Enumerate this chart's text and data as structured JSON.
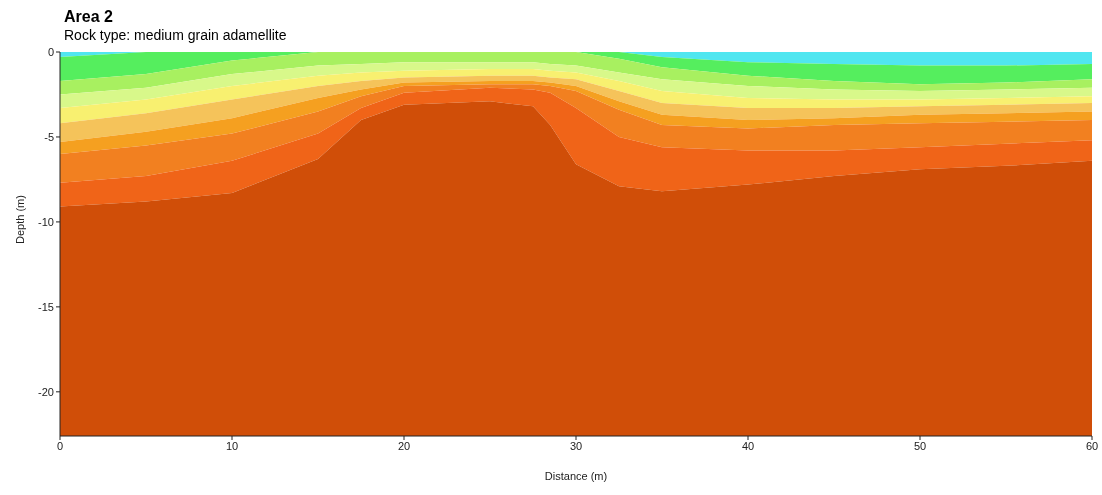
{
  "chart_data": {
    "type": "area",
    "title": "Area 2",
    "subtitle": "Rock type: medium grain adamellite",
    "xlabel": "Distance (m)",
    "ylabel": "Depth (m)",
    "x": [
      0,
      5,
      10,
      15,
      17.5,
      20,
      25,
      27.5,
      28.5,
      30,
      32.5,
      35,
      40,
      45,
      50,
      55,
      60
    ],
    "xlim": [
      0,
      60
    ],
    "xticks": [
      0,
      10,
      20,
      30,
      40,
      50,
      60
    ],
    "ylim": [
      -22.6,
      0
    ],
    "yticks": [
      -20,
      -15,
      -10,
      -5,
      0
    ],
    "grid": false,
    "legend": false,
    "stacked": true,
    "series": [
      {
        "color": "#50e6f0",
        "values": [
          -0.3,
          0,
          0,
          0,
          0,
          0,
          0,
          0,
          0,
          0,
          0,
          -0.3,
          -0.6,
          -0.7,
          -0.8,
          -0.8,
          -0.7
        ]
      },
      {
        "color": "#55ee5e",
        "values": [
          -1.4,
          -1.3,
          -0.5,
          0,
          0,
          0,
          0,
          0,
          0,
          0,
          -0.4,
          -0.6,
          -0.8,
          -1.0,
          -1.1,
          -1.0,
          -0.9
        ]
      },
      {
        "color": "#a8f060",
        "values": [
          -0.8,
          -0.8,
          -0.8,
          -0.8,
          -0.7,
          -0.6,
          -0.6,
          -0.6,
          -0.7,
          -0.8,
          -0.8,
          -0.7,
          -0.6,
          -0.5,
          -0.4,
          -0.4,
          -0.5
        ]
      },
      {
        "color": "#d8f88a",
        "values": [
          -0.8,
          -0.7,
          -0.7,
          -0.6,
          -0.5,
          -0.5,
          -0.4,
          -0.4,
          -0.4,
          -0.4,
          -0.5,
          -0.7,
          -0.7,
          -0.6,
          -0.5,
          -0.5,
          -0.5
        ]
      },
      {
        "color": "#f8f070",
        "values": [
          -0.9,
          -0.8,
          -0.8,
          -0.6,
          -0.5,
          -0.4,
          -0.4,
          -0.4,
          -0.4,
          -0.4,
          -0.6,
          -0.7,
          -0.6,
          -0.5,
          -0.4,
          -0.4,
          -0.4
        ]
      },
      {
        "color": "#f5c35a",
        "values": [
          -1.1,
          -1.1,
          -1.1,
          -0.7,
          -0.5,
          -0.3,
          -0.3,
          -0.3,
          -0.3,
          -0.4,
          -0.6,
          -0.7,
          -0.7,
          -0.6,
          -0.5,
          -0.5,
          -0.5
        ]
      },
      {
        "color": "#f5a020",
        "values": [
          -0.7,
          -0.8,
          -0.9,
          -0.8,
          -0.4,
          -0.2,
          -0.2,
          -0.2,
          -0.2,
          -0.3,
          -0.5,
          -0.6,
          -0.5,
          -0.4,
          -0.5,
          -0.5,
          -0.5
        ]
      },
      {
        "color": "#f28020",
        "values": [
          -1.7,
          -1.8,
          -1.6,
          -1.3,
          -0.7,
          -0.4,
          -0.2,
          -0.3,
          -0.4,
          -1.0,
          -1.6,
          -1.3,
          -1.3,
          -1.5,
          -1.4,
          -1.3,
          -1.2
        ]
      },
      {
        "color": "#f06418",
        "values": [
          -1.4,
          -1.5,
          -1.9,
          -1.5,
          -0.7,
          -0.7,
          -0.8,
          -1.0,
          -1.9,
          -3.3,
          -2.9,
          -2.6,
          -2.0,
          -1.5,
          -1.3,
          -1.3,
          -1.2
        ]
      },
      {
        "color": "#d04e08",
        "values": [
          -13.5,
          -13.8,
          -14.3,
          -16.3,
          -18.6,
          -19.5,
          -19.7,
          -19.4,
          -18.3,
          -16.0,
          -14.7,
          -14.4,
          -14.8,
          -15.3,
          -15.7,
          -15.9,
          -16.2
        ]
      }
    ]
  }
}
